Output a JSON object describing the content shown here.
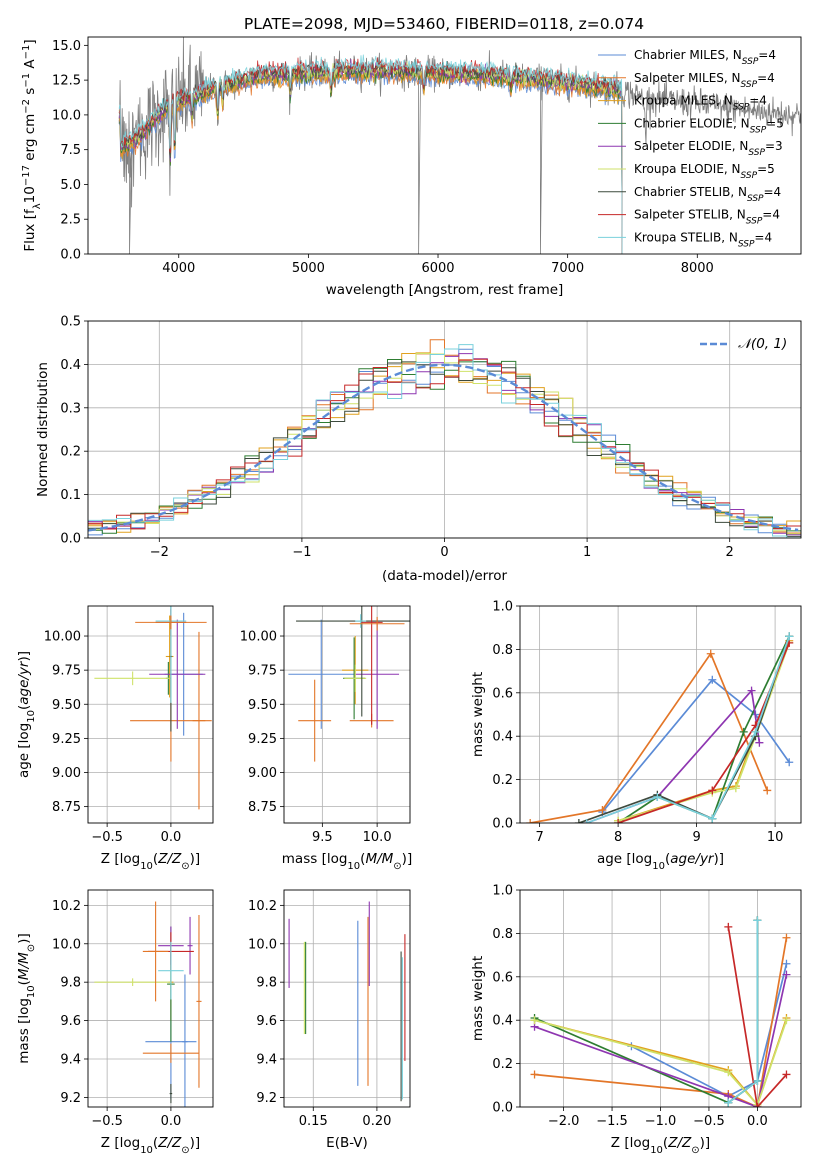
{
  "title": "PLATE=2098, MJD=53460, FIBERID=0118, z=0.074",
  "colors": {
    "Chabrier MILES": "#5b8bd6",
    "Salpeter MILES": "#e37628",
    "Kroupa MILES": "#e1a11e",
    "Chabrier ELODIE": "#2e7d32",
    "Salpeter ELODIE": "#8e36b1",
    "Kroupa ELODIE": "#cfe26a",
    "Chabrier STELIB": "#3d4a3d",
    "Salpeter STELIB": "#c62828",
    "Kroupa STELIB": "#79d1dc",
    "data": "#7f7f7f",
    "gaussian": "#5b8bd6"
  },
  "legend": [
    {
      "label": "Chabrier MILES, N",
      "sub": "SSP",
      "tail": "=4",
      "key": "Chabrier MILES"
    },
    {
      "label": "Salpeter MILES, N",
      "sub": "SSP",
      "tail": "=4",
      "key": "Salpeter MILES"
    },
    {
      "label": "Kroupa MILES, N",
      "sub": "SSP",
      "tail": "=4",
      "key": "Kroupa MILES"
    },
    {
      "label": "Chabrier ELODIE, N",
      "sub": "SSP",
      "tail": "=5",
      "key": "Chabrier ELODIE"
    },
    {
      "label": "Salpeter ELODIE, N",
      "sub": "SSP",
      "tail": "=3",
      "key": "Salpeter ELODIE"
    },
    {
      "label": "Kroupa ELODIE, N",
      "sub": "SSP",
      "tail": "=5",
      "key": "Kroupa ELODIE"
    },
    {
      "label": "Chabrier STELIB, N",
      "sub": "SSP",
      "tail": "=4",
      "key": "Chabrier STELIB"
    },
    {
      "label": "Salpeter STELIB, N",
      "sub": "SSP",
      "tail": "=4",
      "key": "Salpeter STELIB"
    },
    {
      "label": "Kroupa STELIB, N",
      "sub": "SSP",
      "tail": "=4",
      "key": "Kroupa STELIB"
    }
  ],
  "chart_data": [
    {
      "id": "spectrum",
      "type": "line",
      "xlabel": "wavelength [Angstrom, rest frame]",
      "ylabel": "Flux [f_λ 10^-17 erg cm^-2 s^-1 A^-1]",
      "xlim": [
        3300,
        8800
      ],
      "ylim": [
        0,
        15.6
      ],
      "xticks": [
        "4000",
        "5000",
        "6000",
        "7000",
        "8000"
      ],
      "yticks": [
        "0.0",
        "2.5",
        "5.0",
        "7.5",
        "10.0",
        "12.5",
        "15.0"
      ],
      "continuum_anchors": [
        [
          3550,
          7.5
        ],
        [
          3700,
          8.5
        ],
        [
          3900,
          10.5
        ],
        [
          4000,
          11.0
        ],
        [
          4300,
          12.0
        ],
        [
          4600,
          12.8
        ],
        [
          5000,
          13.0
        ],
        [
          5500,
          13.2
        ],
        [
          6000,
          13.0
        ],
        [
          6500,
          12.8
        ],
        [
          7000,
          12.3
        ],
        [
          7400,
          11.8
        ],
        [
          7600,
          11.2
        ],
        [
          8000,
          10.8
        ],
        [
          8500,
          10.2
        ],
        [
          8800,
          10.0
        ]
      ],
      "data_glitches": [
        3620,
        5850,
        6790
      ],
      "grid": false
    },
    {
      "id": "residuals",
      "type": "histogram",
      "xlabel": "(data-model)/error",
      "ylabel": "Normed distribution",
      "xlim": [
        -2.5,
        2.5
      ],
      "ylim": [
        0,
        0.5
      ],
      "xticks": [
        "−2",
        "−1",
        "0",
        "1",
        "2"
      ],
      "yticks": [
        "0.0",
        "0.1",
        "0.2",
        "0.3",
        "0.4",
        "0.5"
      ],
      "bin_width": 0.1,
      "legend": "𝒩(0, 1)",
      "grid": true
    },
    {
      "id": "age_vs_Z",
      "type": "errorbar",
      "xlabel": "Z [log10(Z/Z⊙)]",
      "ylabel": "age  [log10(age/yr)]",
      "xlim": [
        -0.65,
        0.33
      ],
      "ylim": [
        8.63,
        10.22
      ],
      "xticks": [
        "−0.5",
        "0.0"
      ],
      "yticks": [
        "8.75",
        "9.00",
        "9.25",
        "9.50",
        "9.75",
        "10.00"
      ],
      "points": [
        {
          "m": "Chabrier MILES",
          "x": 0.1,
          "xe": 0.15,
          "y": 9.72,
          "ye": 0.45
        },
        {
          "m": "Salpeter MILES",
          "x": 0.0,
          "xe": 0.32,
          "y": 9.38,
          "ye": 0.3
        },
        {
          "m": "Salpeter MILES",
          "x": 0.22,
          "xe": 0.05,
          "y": 9.38,
          "ye": 0.65
        },
        {
          "m": "Kroupa MILES",
          "x": -0.01,
          "xe": 0.03,
          "y": 9.85,
          "ye": 0.3
        },
        {
          "m": "Chabrier ELODIE",
          "x": -0.02,
          "xe": 0.02,
          "y": 9.69,
          "ye": 0.12
        },
        {
          "m": "Salpeter ELODIE",
          "x": 0.05,
          "xe": 0.22,
          "y": 9.72,
          "ye": 0.4
        },
        {
          "m": "Kroupa ELODIE",
          "x": -0.3,
          "xe": 0.3,
          "y": 9.69,
          "ye": 0.05
        },
        {
          "m": "Chabrier STELIB",
          "x": 0.0,
          "xe": 0.01,
          "y": 9.85,
          "ye": 0.55
        },
        {
          "m": "Salpeter STELIB",
          "x": 0.0,
          "xe": 0.12,
          "y": 10.1,
          "ye": 0.1
        },
        {
          "m": "Kroupa STELIB",
          "x": 0.0,
          "xe": 0.12,
          "y": 10.11,
          "ye": 0.6
        },
        {
          "m": "Salpeter MILES",
          "x": 0.0,
          "xe": 0.28,
          "y": 10.1,
          "ye": 0.05
        }
      ],
      "grid": true
    },
    {
      "id": "age_vs_mass",
      "type": "errorbar",
      "xlabel": "mass [log10(M/M⊙)]",
      "ylabel": "",
      "xlim": [
        9.15,
        10.3
      ],
      "ylim": [
        8.63,
        10.22
      ],
      "xticks": [
        "9.5",
        "10.0"
      ],
      "yticks": [
        "8.75",
        "9.00",
        "9.25",
        "9.50",
        "9.75",
        "10.00"
      ],
      "points": [
        {
          "m": "Chabrier MILES",
          "x": 9.49,
          "xe": 0.3,
          "y": 9.72,
          "ye": 0.4
        },
        {
          "m": "Salpeter MILES",
          "x": 9.43,
          "xe": 0.15,
          "y": 9.38,
          "ye": 0.3
        },
        {
          "m": "Salpeter MILES",
          "x": 9.95,
          "xe": 0.2,
          "y": 9.38,
          "ye": 0.05
        },
        {
          "m": "Kroupa MILES",
          "x": 9.8,
          "xe": 0.12,
          "y": 9.75,
          "ye": 0.25
        },
        {
          "m": "Chabrier ELODIE",
          "x": 9.79,
          "xe": 0.1,
          "y": 9.69,
          "ye": 0.3
        },
        {
          "m": "Salpeter ELODIE",
          "x": 10.0,
          "xe": 0.2,
          "y": 9.72,
          "ye": 0.4
        },
        {
          "m": "Kroupa ELODIE",
          "x": 9.8,
          "xe": 0.1,
          "y": 9.69,
          "ye": 0.1
        },
        {
          "m": "Chabrier STELIB",
          "x": 9.86,
          "xe": 0.6,
          "y": 10.11,
          "ye": 0.7
        },
        {
          "m": "Salpeter STELIB",
          "x": 9.95,
          "xe": 0.1,
          "y": 10.1,
          "ye": 0.75
        },
        {
          "m": "Kroupa STELIB",
          "x": 9.85,
          "xe": 0.05,
          "y": 10.11,
          "ye": 0.05
        },
        {
          "m": "Salpeter MILES",
          "x": 10.0,
          "xe": 0.25,
          "y": 10.09,
          "ye": 0.05
        }
      ],
      "grid": true
    },
    {
      "id": "mass_weight_vs_age",
      "type": "line",
      "xlabel": "age  [log10(age/yr)]",
      "ylabel": "mass weight",
      "xlim": [
        6.75,
        10.33
      ],
      "ylim": [
        0,
        1.0
      ],
      "xticks": [
        "7",
        "8",
        "9",
        "10"
      ],
      "yticks": [
        "0.0",
        "0.2",
        "0.4",
        "0.6",
        "0.8",
        "1.0"
      ],
      "series": [
        {
          "m": "Chabrier MILES",
          "x": [
            7.8,
            9.2,
            9.75,
            10.18
          ],
          "y": [
            0.05,
            0.66,
            0.5,
            0.28
          ]
        },
        {
          "m": "Salpeter MILES",
          "x": [
            6.88,
            7.8,
            9.18,
            9.9
          ],
          "y": [
            0.0,
            0.06,
            0.78,
            0.15
          ]
        },
        {
          "m": "Kroupa MILES",
          "x": [
            8.0,
            9.2,
            9.5,
            9.75,
            10.18
          ],
          "y": [
            0.01,
            0.15,
            0.17,
            0.42,
            0.84
          ]
        },
        {
          "m": "Chabrier ELODIE",
          "x": [
            8.0,
            8.5,
            9.2,
            9.6,
            10.18
          ],
          "y": [
            0.0,
            0.12,
            0.02,
            0.42,
            0.86
          ]
        },
        {
          "m": "Salpeter ELODIE",
          "x": [
            7.6,
            8.5,
            9.7,
            9.8
          ],
          "y": [
            0.0,
            0.12,
            0.61,
            0.37
          ]
        },
        {
          "m": "Kroupa ELODIE",
          "x": [
            8.0,
            9.2,
            9.5,
            9.75,
            10.18
          ],
          "y": [
            0.01,
            0.14,
            0.16,
            0.4,
            0.83
          ]
        },
        {
          "m": "Chabrier STELIB",
          "x": [
            7.5,
            8.5,
            9.2,
            9.75,
            10.18
          ],
          "y": [
            0.0,
            0.13,
            0.02,
            0.4,
            0.86
          ]
        },
        {
          "m": "Salpeter STELIB",
          "x": [
            8.0,
            9.2,
            9.75,
            10.18
          ],
          "y": [
            0.0,
            0.15,
            0.45,
            0.83
          ]
        },
        {
          "m": "Kroupa STELIB",
          "x": [
            7.6,
            8.5,
            9.2,
            9.75,
            10.18
          ],
          "y": [
            0.0,
            0.12,
            0.02,
            0.42,
            0.86
          ]
        }
      ],
      "grid": true
    },
    {
      "id": "mass_vs_Z",
      "type": "errorbar",
      "xlabel": "Z [log10(Z/Z⊙)]",
      "ylabel": "mass [log10(M/M⊙)]",
      "xlim": [
        -0.65,
        0.33
      ],
      "ylim": [
        9.15,
        10.28
      ],
      "xticks": [
        "−0.5",
        "0.0"
      ],
      "yticks": [
        "9.2",
        "9.4",
        "9.6",
        "9.8",
        "10.0",
        "10.2"
      ],
      "points": [
        {
          "m": "Chabrier MILES",
          "x": 0.0,
          "xe": 0.2,
          "y": 9.49,
          "ye": 0.3
        },
        {
          "m": "Chabrier MILES",
          "x": 0.11,
          "xe": 0.02,
          "y": 9.49,
          "ye": 0.35
        },
        {
          "m": "Salpeter MILES",
          "x": 0.0,
          "xe": 0.22,
          "y": 9.43,
          "ye": 0.05
        },
        {
          "m": "Salpeter MILES",
          "x": 0.22,
          "xe": 0.02,
          "y": 9.7,
          "ye": 0.45
        },
        {
          "m": "Kroupa MILES",
          "x": 0.0,
          "xe": 0.02,
          "y": 9.8,
          "ye": 0.2
        },
        {
          "m": "Chabrier ELODIE",
          "x": 0.0,
          "xe": 0.03,
          "y": 9.79,
          "ye": 0.3
        },
        {
          "m": "Salpeter ELODIE",
          "x": 0.0,
          "xe": 0.1,
          "y": 9.99,
          "ye": 0.1
        },
        {
          "m": "Salpeter ELODIE",
          "x": 0.15,
          "xe": 0.02,
          "y": 9.99,
          "ye": 0.15
        },
        {
          "m": "Kroupa ELODIE",
          "x": -0.3,
          "xe": 0.3,
          "y": 9.8,
          "ye": 0.02
        },
        {
          "m": "Chabrier STELIB",
          "x": 0.0,
          "xe": 0.01,
          "y": 9.22,
          "ye": 0.05
        },
        {
          "m": "Salpeter STELIB",
          "x": 0.0,
          "xe": 0.18,
          "y": 9.96,
          "ye": 0.1
        },
        {
          "m": "Kroupa STELIB",
          "x": 0.0,
          "xe": 0.1,
          "y": 9.86,
          "ye": 0.15
        },
        {
          "m": "Salpeter MILES",
          "x": -0.12,
          "xe": 0.1,
          "y": 9.96,
          "ye": 0.26
        }
      ],
      "grid": true
    },
    {
      "id": "mass_vs_EBV",
      "type": "errorbar",
      "xlabel": "E(B-V)",
      "ylabel": "",
      "xlim": [
        0.127,
        0.226
      ],
      "ylim": [
        9.15,
        10.28
      ],
      "xticks": [
        "0.15",
        "0.20"
      ],
      "yticks": [
        "9.2",
        "9.4",
        "9.6",
        "9.8",
        "10.0",
        "10.2"
      ],
      "points": [
        {
          "m": "Salpeter ELODIE",
          "x": 0.131,
          "xe": 0.0,
          "y": 9.95,
          "ye": 0.18
        },
        {
          "m": "Kroupa ELODIE",
          "x": 0.143,
          "xe": 0.0,
          "y": 9.77,
          "ye": 0.24
        },
        {
          "m": "Chabrier ELODIE",
          "x": 0.144,
          "xe": 0.0,
          "y": 9.77,
          "ye": 0.24
        },
        {
          "m": "Chabrier MILES",
          "x": 0.185,
          "xe": 0.0,
          "y": 9.69,
          "ye": 0.43
        },
        {
          "m": "Salpeter MILES",
          "x": 0.193,
          "xe": 0.0,
          "y": 9.7,
          "ye": 0.44
        },
        {
          "m": "Salpeter ELODIE",
          "x": 0.194,
          "xe": 0.0,
          "y": 10.0,
          "ye": 0.22
        },
        {
          "m": "Chabrier STELIB",
          "x": 0.219,
          "xe": 0.0,
          "y": 9.57,
          "ye": 0.39
        },
        {
          "m": "Kroupa STELIB",
          "x": 0.22,
          "xe": 0.0,
          "y": 9.56,
          "ye": 0.37
        },
        {
          "m": "Salpeter STELIB",
          "x": 0.222,
          "xe": 0.0,
          "y": 9.72,
          "ye": 0.33
        }
      ],
      "grid": true
    },
    {
      "id": "mass_weight_vs_Z",
      "type": "line",
      "xlabel": "Z [log10(Z/Z⊙)]",
      "ylabel": "mass weight",
      "xlim": [
        -2.45,
        0.45
      ],
      "ylim": [
        0,
        1.0
      ],
      "xticks": [
        "−2.0",
        "−1.5",
        "−1.0",
        "−0.5",
        "0.0"
      ],
      "yticks": [
        "0.0",
        "0.2",
        "0.4",
        "0.6",
        "0.8",
        "1.0"
      ],
      "series": [
        {
          "m": "Chabrier MILES",
          "x": [
            -1.3,
            -0.3,
            0.0,
            0.3
          ],
          "y": [
            0.28,
            0.05,
            0.12,
            0.66
          ]
        },
        {
          "m": "Salpeter MILES",
          "x": [
            -2.3,
            -0.3,
            0.0,
            0.3
          ],
          "y": [
            0.15,
            0.06,
            0.0,
            0.78
          ]
        },
        {
          "m": "Kroupa MILES",
          "x": [
            -2.3,
            -0.3,
            0.0,
            0.3
          ],
          "y": [
            0.4,
            0.17,
            0.01,
            0.41
          ]
        },
        {
          "m": "Chabrier ELODIE",
          "x": [
            -2.3,
            -0.3,
            0.0,
            0.0
          ],
          "y": [
            0.41,
            0.02,
            0.12,
            0.86
          ]
        },
        {
          "m": "Salpeter ELODIE",
          "x": [
            -2.3,
            -0.3,
            0.0,
            0.3
          ],
          "y": [
            0.37,
            0.05,
            0.0,
            0.61
          ]
        },
        {
          "m": "Kroupa ELODIE",
          "x": [
            -2.3,
            -0.3,
            0.0,
            0.3
          ],
          "y": [
            0.4,
            0.16,
            0.01,
            0.4
          ]
        },
        {
          "m": "Chabrier STELIB",
          "x": [
            -0.3,
            0.0,
            0.0
          ],
          "y": [
            0.02,
            0.12,
            0.86
          ]
        },
        {
          "m": "Salpeter STELIB",
          "x": [
            -0.3,
            0.0,
            0.3
          ],
          "y": [
            0.83,
            0.0,
            0.15
          ]
        },
        {
          "m": "Kroupa STELIB",
          "x": [
            -0.3,
            0.0,
            0.0
          ],
          "y": [
            0.02,
            0.12,
            0.86
          ]
        }
      ],
      "grid": true
    }
  ]
}
